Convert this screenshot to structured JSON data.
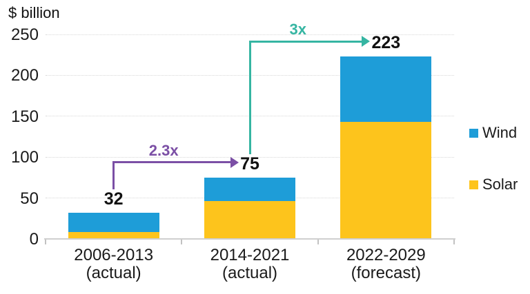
{
  "chart_data": {
    "type": "bar",
    "stacked": true,
    "unit_label": "$ billion",
    "categories": [
      {
        "label": "2006-2013",
        "sublabel": "(actual)"
      },
      {
        "label": "2014-2021",
        "sublabel": "(actual)"
      },
      {
        "label": "2022-2029",
        "sublabel": "(forecast)"
      }
    ],
    "series": [
      {
        "name": "Solar",
        "color": "#FDC41C",
        "values": [
          8,
          46,
          143
        ]
      },
      {
        "name": "Wind",
        "color": "#1E9DD8",
        "values": [
          24,
          29,
          80
        ]
      }
    ],
    "totals": [
      32,
      75,
      223
    ],
    "total_labels": [
      "32",
      "75",
      "223"
    ],
    "ylim": [
      0,
      250
    ],
    "yticks": [
      0,
      50,
      100,
      150,
      200,
      250
    ],
    "grid": "horizontal-dotted",
    "legend_position": "right",
    "legend": [
      {
        "name": "Wind",
        "color": "#1E9DD8"
      },
      {
        "name": "Solar",
        "color": "#FDC41C"
      }
    ],
    "annotations": [
      {
        "label": "2.3x",
        "color": "#7B4FA5",
        "from_category": 0,
        "to_category": 1
      },
      {
        "label": "3x",
        "color": "#35B5A2",
        "from_category": 1,
        "to_category": 2
      }
    ]
  },
  "colors": {
    "background": "#ffffff",
    "wind_blue": "#1E9DD8",
    "solar_yellow": "#FDC41C",
    "arrow_purple": "#7B4FA5",
    "arrow_teal": "#35B5A2",
    "gridline": "#d7d7d7",
    "axis": "#cfcfcf",
    "text": "#1a1a1a"
  }
}
